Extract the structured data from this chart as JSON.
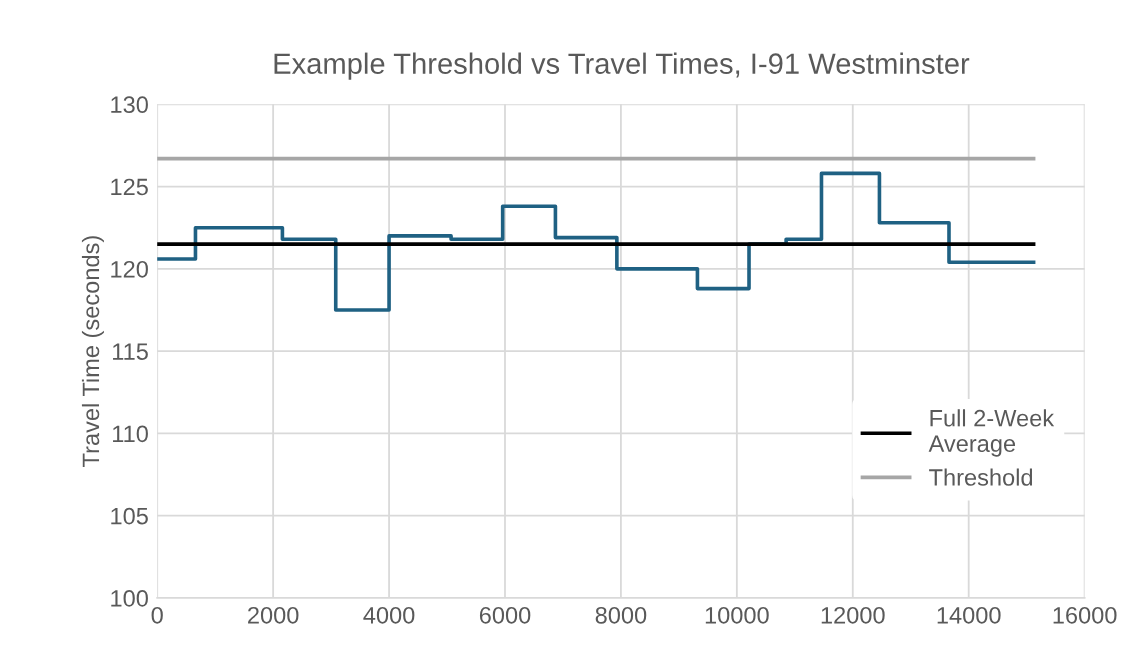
{
  "chart_data": {
    "type": "step",
    "title": "Example Threshold vs Travel Times, I-91 Westminster",
    "ylabel": "Travel Time (seconds)",
    "xlim": [
      0,
      16000
    ],
    "xticks": [
      0,
      2000,
      4000,
      6000,
      8000,
      10000,
      12000,
      14000,
      16000
    ],
    "ylim": [
      100,
      130
    ],
    "yticks": [
      100,
      105,
      110,
      115,
      120,
      125,
      130
    ],
    "grid": true,
    "legend": "right",
    "series": [
      {
        "color": "#1f6183",
        "x": [
          0,
          660,
          2160,
          3080,
          4000,
          5070,
          5960,
          6870,
          7930,
          9320,
          10210,
          10850,
          11460,
          12460,
          13660,
          15120
        ],
        "values": [
          120.6,
          122.5,
          121.8,
          117.5,
          122.0,
          121.8,
          123.8,
          121.9,
          120.0,
          118.8,
          121.5,
          121.8,
          125.8,
          122.8,
          120.4,
          120.4
        ]
      },
      {
        "type": "line",
        "name": "Full 2-Week\nAverage",
        "color": "#000000",
        "x": [
          0,
          15120
        ],
        "values": [
          121.5,
          121.5
        ]
      },
      {
        "type": "line",
        "name": "Threshold",
        "color": "#a6a6a6",
        "x": [
          0,
          15120
        ],
        "values": [
          126.7,
          126.7
        ]
      }
    ]
  }
}
